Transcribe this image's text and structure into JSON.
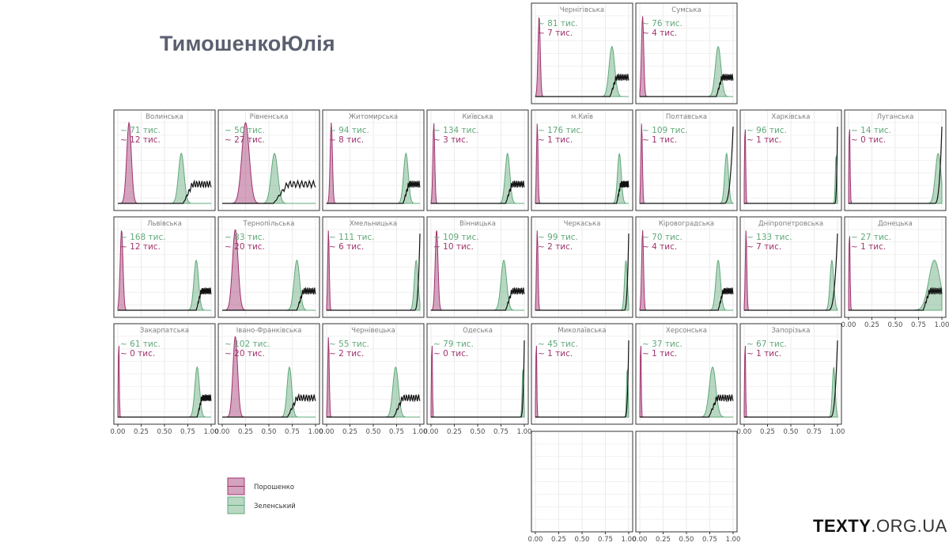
{
  "header": {
    "title": "ТимошенкоЮлія"
  },
  "brand": {
    "bold": "TEXTY",
    "light": ".ORG.UA"
  },
  "legend": {
    "entries": [
      {
        "name": "Порошенко",
        "color": "#a0336e"
      },
      {
        "name": "Зеленський",
        "color": "#61a97a"
      }
    ],
    "placement": "bottom-left"
  },
  "chart_data": {
    "type": "area",
    "facet": "small-multiples density",
    "xlim": [
      0,
      1
    ],
    "x_ticks": [
      "0.00",
      "0.25",
      "0.50",
      "0.75",
      "1.00"
    ],
    "grid": true,
    "series_colors": {
      "poroshenko": "#a0336e",
      "zelensky": "#61a97a",
      "tymoshenko": "#111111"
    },
    "panels": [
      {
        "region": "Чернігівська",
        "z_count": "~ 81  тис.",
        "p_count": "~ 7  тис.",
        "p_peak": 0.04,
        "p_sd": 0.012,
        "z_peak": 0.82,
        "z_sd": 0.03,
        "t_start": 0.8
      },
      {
        "region": "Сумська",
        "z_count": "~ 76  тис.",
        "p_count": "~ 4  тис.",
        "p_peak": 0.03,
        "p_sd": 0.012,
        "z_peak": 0.84,
        "z_sd": 0.03,
        "t_start": 0.82
      },
      {
        "region": "Волинська",
        "z_count": "~ 71  тис.",
        "p_count": "~ 12  тис.",
        "p_peak": 0.12,
        "p_sd": 0.025,
        "z_peak": 0.68,
        "z_sd": 0.03,
        "t_start": 0.7
      },
      {
        "region": "Рівненська",
        "z_count": "~ 50  тис.",
        "p_count": "~ 27  тис.",
        "p_peak": 0.25,
        "p_sd": 0.04,
        "z_peak": 0.56,
        "z_sd": 0.035,
        "t_start": 0.55
      },
      {
        "region": "Житомирська",
        "z_count": "~ 94  тис.",
        "p_count": "~ 8  тис.",
        "p_peak": 0.05,
        "p_sd": 0.012,
        "z_peak": 0.85,
        "z_sd": 0.025,
        "t_start": 0.82
      },
      {
        "region": "Київська",
        "z_count": "~ 134  тис.",
        "p_count": "~ 3  тис.",
        "p_peak": 0.03,
        "p_sd": 0.01,
        "z_peak": 0.82,
        "z_sd": 0.025,
        "t_start": 0.8
      },
      {
        "region": "м.Київ",
        "z_count": "~ 176  тис.",
        "p_count": "~ 1  тис.",
        "p_peak": 0.02,
        "p_sd": 0.008,
        "z_peak": 0.9,
        "z_sd": 0.02,
        "t_start": 0.87
      },
      {
        "region": "Полтавська",
        "z_count": "~ 109  тис.",
        "p_count": "~ 1  тис.",
        "p_peak": 0.02,
        "p_sd": 0.008,
        "z_peak": 0.93,
        "z_sd": 0.02,
        "t_start": 0.9
      },
      {
        "region": "Харківська",
        "z_count": "~ 96  тис.",
        "p_count": "~ 1  тис.",
        "p_peak": 0.01,
        "p_sd": 0.006,
        "z_peak": 0.985,
        "z_sd": 0.008,
        "t_start": 0.97
      },
      {
        "region": "Луганська",
        "z_count": "~ 14  тис.",
        "p_count": "~ 0  тис.",
        "p_peak": 0.01,
        "p_sd": 0.006,
        "z_peak": 0.96,
        "z_sd": 0.03,
        "t_start": 0.92
      },
      {
        "region": "Львівська",
        "z_count": "~ 168  тис.",
        "p_count": "~ 12  тис.",
        "p_peak": 0.04,
        "p_sd": 0.015,
        "z_peak": 0.84,
        "z_sd": 0.025,
        "t_start": 0.84
      },
      {
        "region": "Тернопільська",
        "z_count": "~ 83  тис.",
        "p_count": "~ 20  тис.",
        "p_peak": 0.14,
        "p_sd": 0.03,
        "z_peak": 0.8,
        "z_sd": 0.03,
        "t_start": 0.8
      },
      {
        "region": "Хмельницька",
        "z_count": "~ 111  тис.",
        "p_count": "~ 6  тис.",
        "p_peak": 0.02,
        "p_sd": 0.008,
        "z_peak": 0.96,
        "z_sd": 0.02,
        "t_start": 0.94
      },
      {
        "region": "Вінницька",
        "z_count": "~ 109  тис.",
        "p_count": "~ 10  тис.",
        "p_peak": 0.06,
        "p_sd": 0.015,
        "z_peak": 0.78,
        "z_sd": 0.03,
        "t_start": 0.8
      },
      {
        "region": "Черкаська",
        "z_count": "~ 99  тис.",
        "p_count": "~ 2  тис.",
        "p_peak": 0.02,
        "p_sd": 0.008,
        "z_peak": 0.97,
        "z_sd": 0.015,
        "t_start": 0.95
      },
      {
        "region": "Кіровоградська",
        "z_count": "~ 70  тис.",
        "p_count": "~ 4  тис.",
        "p_peak": 0.03,
        "p_sd": 0.01,
        "z_peak": 0.84,
        "z_sd": 0.025,
        "t_start": 0.84
      },
      {
        "region": "Дніпропетровська",
        "z_count": "~ 133  тис.",
        "p_count": "~ 7  тис.",
        "p_peak": 0.02,
        "p_sd": 0.008,
        "z_peak": 0.94,
        "z_sd": 0.02,
        "t_start": 0.9
      },
      {
        "region": "Донецька",
        "z_count": "~ 27  тис.",
        "p_count": "~ 1  тис.",
        "p_peak": 0.01,
        "p_sd": 0.006,
        "z_peak": 0.92,
        "z_sd": 0.06,
        "t_start": 0.8
      },
      {
        "region": "Закарпатська",
        "z_count": "~ 61  тис.",
        "p_count": "~ 0  тис.",
        "p_peak": 0.01,
        "p_sd": 0.005,
        "z_peak": 0.85,
        "z_sd": 0.025,
        "t_start": 0.85
      },
      {
        "region": "Івано-Франківська",
        "z_count": "~ 102  тис.",
        "p_count": "~ 20  тис.",
        "p_peak": 0.14,
        "p_sd": 0.025,
        "z_peak": 0.72,
        "z_sd": 0.025,
        "t_start": 0.7
      },
      {
        "region": "Чернівецька",
        "z_count": "~ 55  тис.",
        "p_count": "~ 2  тис.",
        "p_peak": 0.02,
        "p_sd": 0.008,
        "z_peak": 0.74,
        "z_sd": 0.03,
        "t_start": 0.72
      },
      {
        "region": "Одеська",
        "z_count": "~ 79  тис.",
        "p_count": "~ 0  тис.",
        "p_peak": 0.01,
        "p_sd": 0.005,
        "z_peak": 0.985,
        "z_sd": 0.008,
        "t_start": 0.96
      },
      {
        "region": "Миколаївська",
        "z_count": "~ 45  тис.",
        "p_count": "~ 1  тис.",
        "p_peak": 0.01,
        "p_sd": 0.005,
        "z_peak": 0.985,
        "z_sd": 0.008,
        "t_start": 0.96
      },
      {
        "region": "Херсонська",
        "z_count": "~ 37  тис.",
        "p_count": "~ 1  тис.",
        "p_peak": 0.01,
        "p_sd": 0.005,
        "z_peak": 0.78,
        "z_sd": 0.035,
        "t_start": 0.74
      },
      {
        "region": "Запорізька",
        "z_count": "~ 67  тис.",
        "p_count": "~ 1  тис.",
        "p_peak": 0.01,
        "p_sd": 0.005,
        "z_peak": 0.96,
        "z_sd": 0.015,
        "t_start": 0.92
      },
      {
        "region": "",
        "z_count": "",
        "p_count": "",
        "empty": true
      },
      {
        "region": "",
        "z_count": "",
        "p_count": "",
        "empty": true
      }
    ]
  }
}
